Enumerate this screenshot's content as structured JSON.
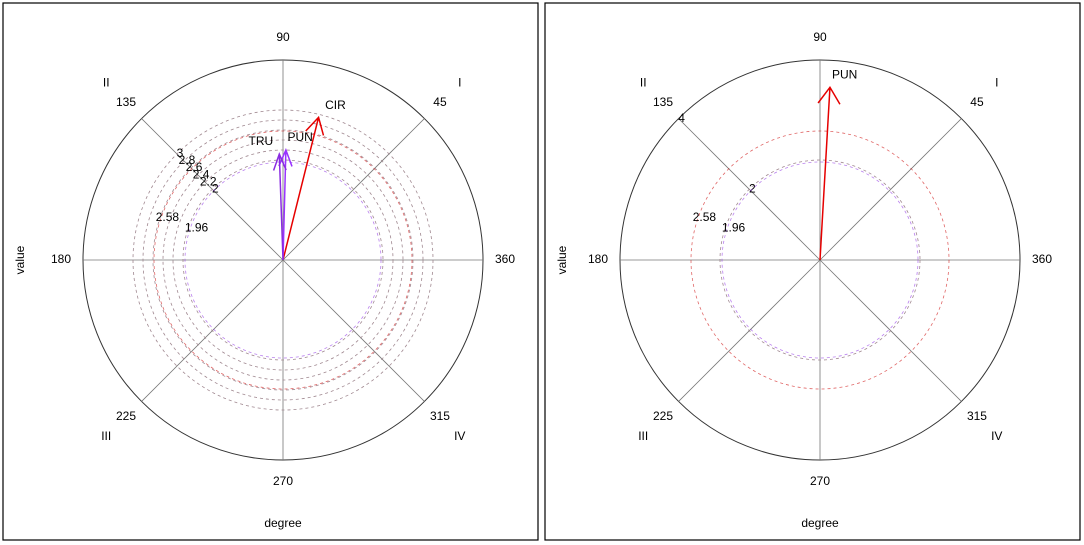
{
  "chart_data": [
    {
      "type": "polar_vector",
      "x_label": "degree",
      "y_label": "value",
      "angle_ticks": [
        90,
        45,
        360,
        315,
        270,
        225,
        180,
        135
      ],
      "quadrants": [
        "I",
        "II",
        "III",
        "IV"
      ],
      "rlim": [
        0,
        4
      ],
      "rticks": [
        3,
        2.8,
        2.6,
        2.4,
        2.2,
        2
      ],
      "reference_circles": [
        {
          "value": 2.58,
          "color": "#cc0000"
        },
        {
          "value": 1.96,
          "color": "#8a2be2"
        }
      ],
      "series": [
        {
          "name": "CIR",
          "color": "#e60000",
          "angle": 76,
          "value": 2.94
        },
        {
          "name": "PUN",
          "color": "#9933ff",
          "angle": 88.5,
          "value": 2.2
        },
        {
          "name": "TRU",
          "color": "#8a2be2",
          "angle": 92,
          "value": 2.12
        }
      ]
    },
    {
      "type": "polar_vector",
      "x_label": "degree",
      "y_label": "value",
      "angle_ticks": [
        90,
        45,
        360,
        315,
        270,
        225,
        180,
        135
      ],
      "quadrants": [
        "I",
        "II",
        "III",
        "IV"
      ],
      "rlim": [
        0,
        4
      ],
      "rticks": [
        4,
        2
      ],
      "reference_circles": [
        {
          "value": 2.58,
          "color": "#cc0000"
        },
        {
          "value": 1.96,
          "color": "#8a2be2"
        }
      ],
      "series": [
        {
          "name": "PUN",
          "color": "#e60000",
          "angle": 86.7,
          "value": 3.46
        }
      ]
    }
  ]
}
